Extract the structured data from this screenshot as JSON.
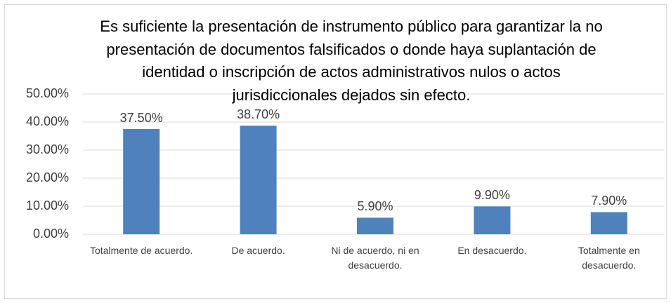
{
  "chart_data": {
    "type": "bar",
    "title": "Es suficiente la presentación de instrumento público para garantizar la no presentación de documentos falsificados o donde haya suplantación de identidad o inscripción de actos administrativos nulos o actos jurisdiccionales dejados sin efecto.",
    "categories": [
      "Totalmente de acuerdo.",
      "De acuerdo.",
      "Ni de acuerdo, ni en desacuerdo.",
      "En desacuerdo.",
      "Totalmente en desacuerdo."
    ],
    "values": [
      37.5,
      38.7,
      5.9,
      9.9,
      7.9
    ],
    "value_labels": [
      "37.50%",
      "38.70%",
      "5.90%",
      "9.90%",
      "7.90%"
    ],
    "color": "#4f81bd",
    "ylim": [
      0,
      50
    ],
    "yticks": [
      {
        "value": 0,
        "label": "0.00%"
      },
      {
        "value": 10,
        "label": "10.00%"
      },
      {
        "value": 20,
        "label": "20.00%"
      },
      {
        "value": 30,
        "label": "30.00%"
      },
      {
        "value": 40,
        "label": "40.00%"
      },
      {
        "value": 50,
        "label": "50.00%"
      }
    ],
    "grid": true
  }
}
